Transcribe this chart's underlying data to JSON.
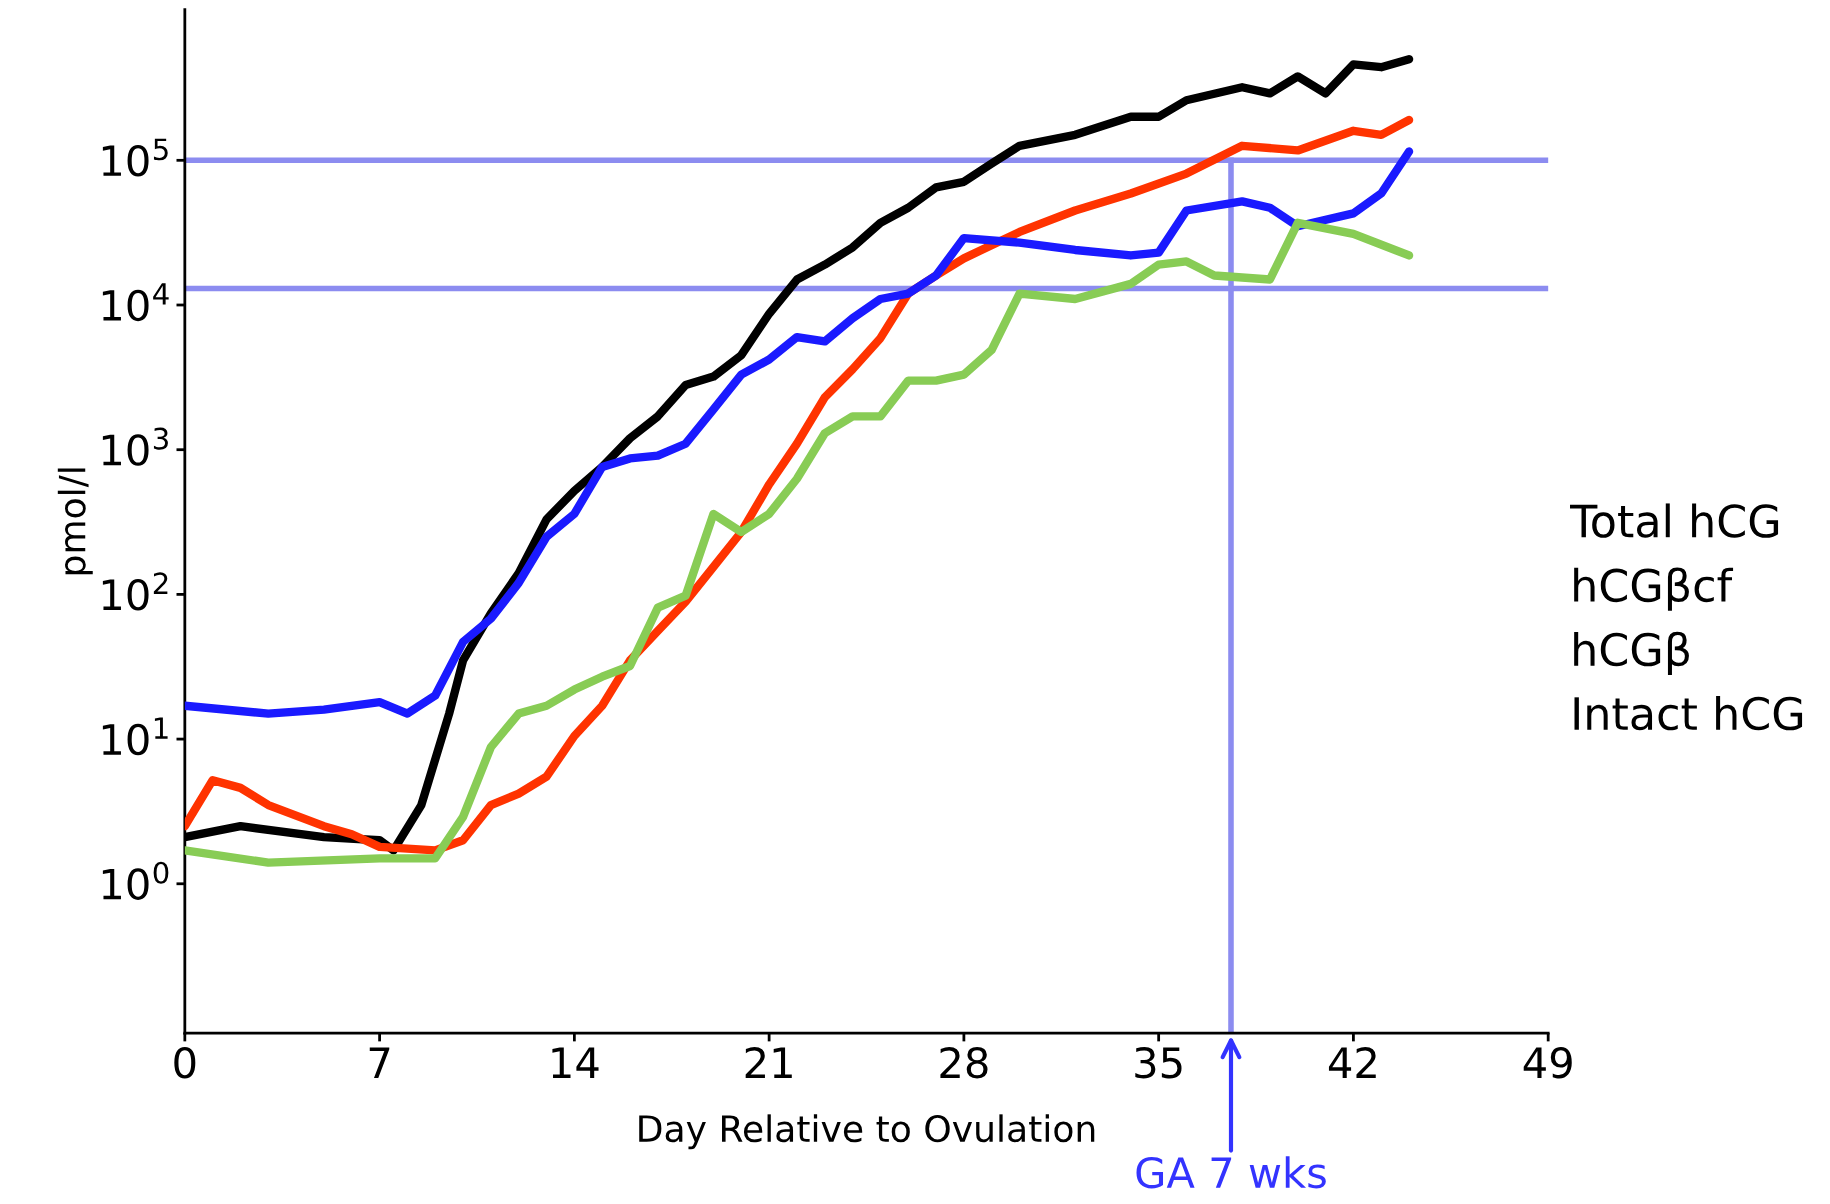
{
  "chart_data": {
    "type": "line",
    "xlabel": "Day Relative to Ovulation",
    "ylabel": "pmol/l",
    "log": "y",
    "xlim": [
      0,
      49
    ],
    "xticks": [
      0,
      7,
      14,
      21,
      28,
      35,
      42,
      49
    ],
    "ylim": [
      0.093,
      1100000
    ],
    "yticks": [
      {
        "value": 1,
        "label": "10$^{0}$"
      },
      {
        "value": 10,
        "label": "10$^{1}$"
      },
      {
        "value": 100,
        "label": "10$^{2}$"
      },
      {
        "value": 1000,
        "label": "10$^{3}$"
      },
      {
        "value": 10000,
        "label": "10$^{4}$"
      },
      {
        "value": 100000,
        "label": "10$^{5}$"
      }
    ],
    "grid": false,
    "marker": "none",
    "line_style": "solid",
    "series": [
      {
        "color": "#000000",
        "x": [
          0,
          2,
          5,
          7,
          7.5,
          8.5,
          9.5,
          10,
          11,
          12,
          13,
          14,
          15,
          16,
          17,
          18,
          19,
          20,
          21,
          22,
          23,
          24,
          25,
          26,
          27,
          28,
          29,
          30,
          32,
          34,
          35,
          36,
          38,
          39,
          40,
          41,
          42,
          43,
          44
        ],
        "values": [
          2.1,
          2.5,
          2.1,
          2.0,
          1.7,
          3.5,
          15,
          35,
          74,
          140,
          330,
          520,
          760,
          1200,
          1700,
          2800,
          3200,
          4500,
          8700,
          15000,
          19000,
          25000,
          37000,
          47000,
          65000,
          71000,
          95000,
          126000,
          150000,
          200000,
          200000,
          260000,
          320000,
          290000,
          380000,
          290000,
          460000,
          440000,
          500000
        ]
      },
      {
        "color": "#ff3300",
        "x": [
          0,
          1,
          2,
          3,
          5,
          6,
          7,
          9,
          10,
          11,
          12,
          13,
          14,
          15,
          16,
          17,
          18,
          19,
          20,
          21,
          22,
          23,
          24,
          25,
          26,
          27,
          28,
          30,
          32,
          34,
          36,
          38,
          40,
          42,
          43,
          44
        ],
        "values": [
          2.5,
          5.2,
          4.6,
          3.5,
          2.5,
          2.2,
          1.8,
          1.7,
          2.0,
          3.5,
          4.2,
          5.5,
          10.5,
          17,
          35,
          56,
          89,
          155,
          270,
          575,
          1100,
          2300,
          3600,
          5900,
          12000,
          16000,
          21000,
          32000,
          45000,
          59000,
          81000,
          126000,
          117000,
          160000,
          150000,
          190000
        ]
      },
      {
        "color": "#1a1aff",
        "x": [
          0,
          3,
          5,
          7,
          8,
          9,
          10,
          11,
          12,
          13,
          14,
          15,
          16,
          17,
          18,
          19,
          20,
          21,
          22,
          23,
          24,
          25,
          26,
          27,
          28,
          30,
          32,
          34,
          35,
          36,
          38,
          39,
          40,
          42,
          43,
          44
        ],
        "values": [
          17,
          15,
          16,
          18,
          15,
          20,
          47,
          68,
          120,
          250,
          360,
          760,
          870,
          910,
          1100,
          1900,
          3300,
          4200,
          6000,
          5600,
          8100,
          11000,
          12000,
          16000,
          29000,
          27000,
          24000,
          22000,
          23000,
          45000,
          52000,
          47000,
          35000,
          43000,
          59000,
          115000
        ]
      },
      {
        "color": "#88cc55",
        "x": [
          0,
          3,
          7,
          9,
          10,
          11,
          12,
          13,
          14,
          15,
          16,
          17,
          18,
          19,
          20,
          21,
          22,
          23,
          24,
          25,
          26,
          27,
          28,
          29,
          30,
          32,
          34,
          35,
          36,
          37,
          39,
          40,
          42,
          44
        ],
        "values": [
          1.7,
          1.4,
          1.5,
          1.5,
          2.9,
          8.8,
          15,
          17,
          22,
          27,
          32,
          81,
          98,
          360,
          270,
          360,
          630,
          1300,
          1700,
          1700,
          3000,
          3000,
          3300,
          4900,
          12000,
          11000,
          14000,
          19000,
          20000,
          16000,
          15000,
          37000,
          31000,
          22000
        ]
      }
    ],
    "ref_lines": [
      {
        "axis": "y",
        "value": 100000,
        "color": "#8c8cf0"
      },
      {
        "axis": "y",
        "value": 13000,
        "color": "#8c8cf0"
      },
      {
        "axis": "x",
        "value": 37.6,
        "label": "GA 7 wks",
        "color": "#8c8cf0"
      }
    ],
    "annotations": [
      "Total hCG",
      "hCGβcf",
      "hCGβ",
      "Intact hCG"
    ]
  }
}
